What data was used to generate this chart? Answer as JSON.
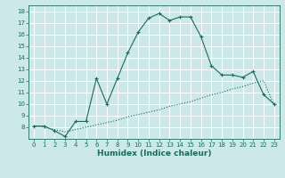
{
  "xlabel": "Humidex (Indice chaleur)",
  "bg_color": "#cce8e8",
  "grid_color": "#ffffff",
  "line_color": "#1a6b5a",
  "xlim": [
    -0.5,
    23.5
  ],
  "ylim": [
    7,
    18.5
  ],
  "yticks": [
    8,
    9,
    10,
    11,
    12,
    13,
    14,
    15,
    16,
    17,
    18
  ],
  "xticks": [
    0,
    1,
    2,
    3,
    4,
    5,
    6,
    7,
    8,
    9,
    10,
    11,
    12,
    13,
    14,
    15,
    16,
    17,
    18,
    19,
    20,
    21,
    22,
    23
  ],
  "upper_x": [
    0,
    1,
    2,
    3,
    4,
    5,
    6,
    7,
    8,
    9,
    10,
    11,
    12,
    13,
    14,
    15,
    16,
    17,
    18,
    19,
    20,
    21,
    22,
    23
  ],
  "upper_y": [
    8.1,
    8.1,
    7.7,
    7.2,
    8.5,
    8.5,
    12.2,
    10.0,
    12.2,
    14.4,
    16.2,
    17.4,
    17.8,
    17.2,
    17.5,
    17.5,
    15.8,
    13.3,
    12.5,
    12.5,
    12.3,
    12.8,
    10.8,
    10.0
  ],
  "lower_x": [
    0,
    1,
    2,
    3,
    4,
    5,
    6,
    7,
    8,
    9,
    10,
    11,
    12,
    13,
    14,
    15,
    16,
    17,
    18,
    19,
    20,
    21,
    22,
    23
  ],
  "lower_y": [
    8.1,
    8.0,
    7.8,
    7.6,
    7.8,
    8.0,
    8.2,
    8.4,
    8.6,
    8.9,
    9.1,
    9.3,
    9.5,
    9.8,
    10.0,
    10.2,
    10.5,
    10.8,
    11.0,
    11.3,
    11.5,
    11.8,
    12.0,
    9.9
  ],
  "xlabel_fontsize": 6.5,
  "tick_fontsize": 5.0
}
